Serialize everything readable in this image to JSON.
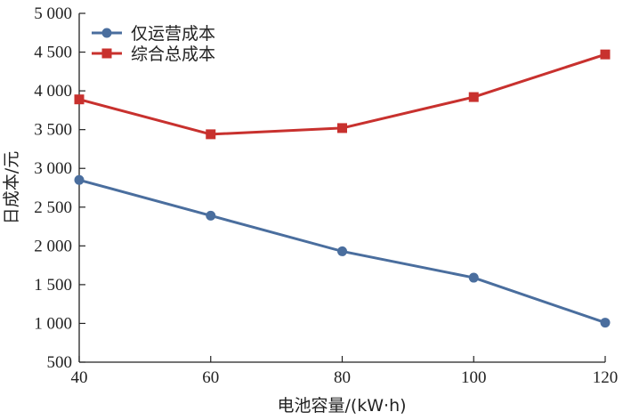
{
  "chart_data": {
    "type": "line",
    "x": [
      40,
      60,
      80,
      100,
      120
    ],
    "xlabel": "电池容量/(kW·h)",
    "ylabel": "日成本/元",
    "xlim": [
      40,
      120
    ],
    "ylim": [
      500,
      5000
    ],
    "xticks": [
      40,
      60,
      80,
      100,
      120
    ],
    "xtick_labels": [
      "40",
      "60",
      "80",
      "100",
      "120"
    ],
    "yticks": [
      500,
      1000,
      1500,
      2000,
      2500,
      3000,
      3500,
      4000,
      4500,
      5000
    ],
    "ytick_labels": [
      "500",
      "1 000",
      "1 500",
      "2 000",
      "2 500",
      "3 000",
      "3 500",
      "4 000",
      "4 500",
      "5 000"
    ],
    "grid": false,
    "legend_position": "top-left",
    "series": [
      {
        "name": "仅运营成本",
        "values": [
          2850,
          2390,
          1930,
          1590,
          1010
        ],
        "color": "#4a6e9e",
        "marker": "circle"
      },
      {
        "name": "综合总成本",
        "values": [
          3890,
          3440,
          3520,
          3920,
          4470
        ],
        "color": "#c8312e",
        "marker": "square"
      }
    ]
  }
}
